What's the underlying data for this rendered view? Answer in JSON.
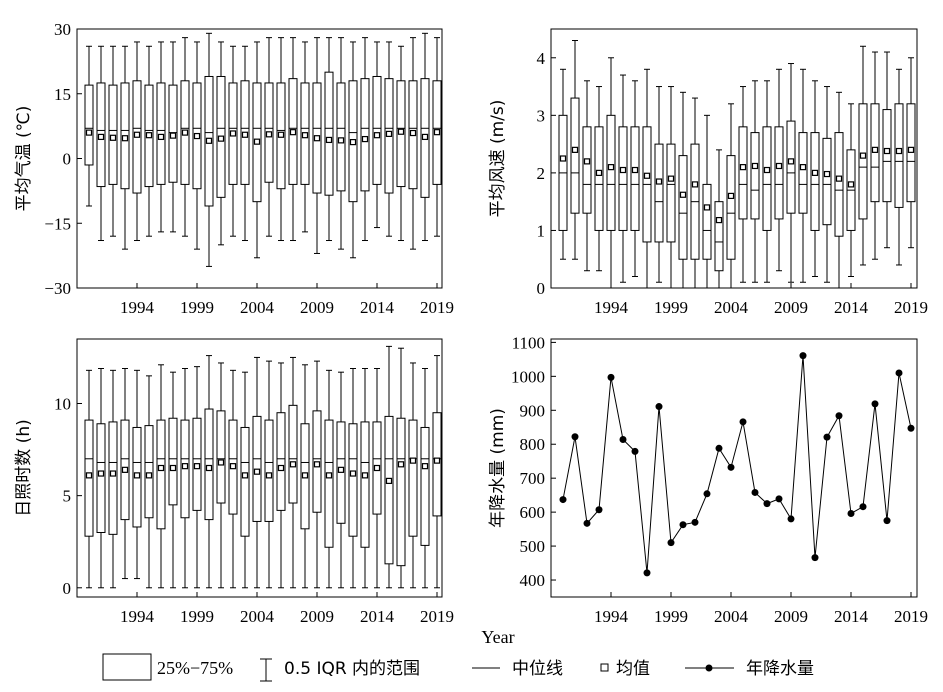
{
  "xlabel": "Year",
  "x_tick_labels": [
    "1994",
    "1999",
    "2004",
    "2009",
    "2014",
    "2019"
  ],
  "chart_data": [
    {
      "type": "box",
      "panel": "temperature",
      "ylabel": "平均气温 (℃)",
      "ylim": [
        -30,
        30
      ],
      "yticks": [
        -30,
        -15,
        0,
        15,
        30
      ],
      "ytick_labels": [
        "−30",
        "−15",
        "0",
        "15",
        "30"
      ],
      "years": [
        1990,
        1991,
        1992,
        1993,
        1994,
        1995,
        1996,
        1997,
        1998,
        1999,
        2000,
        2001,
        2002,
        2003,
        2004,
        2005,
        2006,
        2007,
        2008,
        2009,
        2010,
        2011,
        2012,
        2013,
        2014,
        2015,
        2016,
        2017,
        2018,
        2019
      ],
      "whisker_low": [
        -11,
        -19,
        -18,
        -21,
        -19,
        -18,
        -17,
        -17,
        -18,
        -21,
        -25,
        -20,
        -18,
        -19,
        -23,
        -18,
        -19,
        -19,
        -17,
        -22,
        -19,
        -21,
        -23,
        -19,
        -16,
        -18,
        -19,
        -21,
        -19,
        -18
      ],
      "q1": [
        -1.5,
        -6.5,
        -6,
        -7,
        -8,
        -6.5,
        -6,
        -5.5,
        -6,
        -7,
        -11,
        -9,
        -6,
        -6,
        -10,
        -5.5,
        -7,
        -6,
        -6,
        -8,
        -8.5,
        -7.5,
        -10,
        -7.5,
        -6,
        -8,
        -6.5,
        -7,
        -9,
        -6
      ],
      "median": [
        7,
        6.5,
        6.5,
        6.5,
        7,
        6.5,
        6.5,
        6,
        7,
        7,
        6,
        7,
        7,
        7,
        7,
        7,
        6.5,
        7,
        7,
        7,
        7,
        7,
        6,
        7,
        7,
        7,
        7,
        7,
        7,
        7
      ],
      "mean": [
        6,
        5,
        4.8,
        4.7,
        5.5,
        5.4,
        5,
        5.3,
        6,
        5.2,
        4.1,
        4.6,
        5.8,
        5.5,
        3.9,
        5.6,
        5.5,
        6.1,
        5.4,
        4.7,
        4.3,
        4.2,
        3.8,
        4.5,
        5.4,
        5.7,
        6.2,
        5.9,
        5,
        6.1
      ],
      "q3": [
        17,
        17.5,
        17,
        17.5,
        18,
        17,
        17.5,
        17,
        18,
        17.5,
        19,
        19,
        17.5,
        18,
        17.5,
        17.5,
        17.5,
        18.5,
        17.5,
        17.5,
        20,
        17.5,
        18,
        18.5,
        19,
        18.5,
        18,
        18,
        18.5,
        18
      ],
      "whisker_high": [
        26,
        26,
        26,
        26,
        27,
        26,
        27,
        27,
        28,
        27,
        29,
        27,
        26,
        26,
        27,
        28,
        28,
        28,
        27,
        28,
        28,
        28,
        27,
        28,
        27,
        27,
        26,
        28,
        29,
        28
      ]
    },
    {
      "type": "box",
      "panel": "wind",
      "ylabel": "平均风速 (m/s)",
      "ylim": [
        0,
        4.5
      ],
      "yticks": [
        0,
        1,
        2,
        3,
        4
      ],
      "ytick_labels": [
        "0",
        "1",
        "2",
        "3",
        "4"
      ],
      "years": [
        1990,
        1991,
        1992,
        1993,
        1994,
        1995,
        1996,
        1997,
        1998,
        1999,
        2000,
        2001,
        2002,
        2003,
        2004,
        2005,
        2006,
        2007,
        2008,
        2009,
        2010,
        2011,
        2012,
        2013,
        2014,
        2015,
        2016,
        2017,
        2018,
        2019
      ],
      "whisker_low": [
        0.5,
        0.5,
        0.3,
        0.3,
        0,
        0.1,
        0.2,
        0,
        0.1,
        0,
        0,
        0,
        0,
        0,
        0,
        0.1,
        0.1,
        0.1,
        0.3,
        0.1,
        0.1,
        0.2,
        0.1,
        0,
        0.2,
        0.4,
        0.5,
        0.7,
        0.4,
        0.7
      ],
      "q1": [
        1,
        1.3,
        1.3,
        1,
        1,
        1,
        1,
        0.8,
        0.8,
        0.8,
        0.5,
        0.5,
        0.5,
        0.3,
        0.5,
        1.2,
        1.2,
        1,
        1.2,
        1.3,
        1.3,
        1,
        1.1,
        0.9,
        1,
        1.2,
        1.5,
        1.5,
        1.4,
        1.5
      ],
      "median": [
        2,
        2,
        1.8,
        1.8,
        1.8,
        1.8,
        1.8,
        1.8,
        1.5,
        1.8,
        1.3,
        1.5,
        1,
        0.8,
        1.3,
        1.8,
        1.7,
        1.8,
        1.8,
        2,
        1.8,
        1.8,
        1.8,
        1.7,
        1.7,
        2.1,
        2.1,
        2.2,
        2.2,
        2.2
      ],
      "mean": [
        2.25,
        2.4,
        2.2,
        2,
        2.1,
        2.05,
        2.05,
        1.95,
        1.85,
        1.9,
        1.62,
        1.8,
        1.4,
        1.18,
        1.6,
        2.1,
        2.12,
        2.05,
        2.12,
        2.2,
        2.1,
        2,
        1.98,
        1.9,
        1.8,
        2.3,
        2.4,
        2.38,
        2.38,
        2.4
      ],
      "q3": [
        3,
        3.3,
        2.8,
        2.8,
        3,
        2.8,
        2.8,
        2.8,
        2.5,
        2.5,
        2.3,
        2.5,
        1.8,
        1.5,
        2.3,
        2.8,
        2.7,
        2.8,
        2.8,
        2.9,
        2.7,
        2.7,
        2.6,
        2.7,
        2.4,
        3.2,
        3.2,
        3.1,
        3.2,
        3.2
      ],
      "whisker_high": [
        3.8,
        4.3,
        3.6,
        3.5,
        4,
        3.7,
        3.6,
        3.8,
        3.5,
        3.5,
        3.4,
        3.3,
        3,
        2.4,
        3.2,
        3.5,
        3.6,
        3.6,
        3.8,
        3.9,
        3.8,
        3.6,
        3.5,
        3.4,
        3.2,
        4.2,
        4.1,
        4.1,
        3.8,
        4
      ]
    },
    {
      "type": "box",
      "panel": "sunshine",
      "ylabel": "日照时数 (h)",
      "ylim": [
        -0.5,
        13.5
      ],
      "yticks": [
        0,
        5,
        10
      ],
      "ytick_labels": [
        "0",
        "5",
        "10"
      ],
      "years": [
        1990,
        1991,
        1992,
        1993,
        1994,
        1995,
        1996,
        1997,
        1998,
        1999,
        2000,
        2001,
        2002,
        2003,
        2004,
        2005,
        2006,
        2007,
        2008,
        2009,
        2010,
        2011,
        2012,
        2013,
        2014,
        2015,
        2016,
        2017,
        2018,
        2019
      ],
      "whisker_low": [
        0,
        0,
        0,
        0.5,
        0.5,
        0,
        0,
        0,
        0,
        0,
        0,
        0,
        0,
        0,
        0,
        0,
        0,
        0,
        0,
        0,
        0,
        0,
        0,
        0,
        0,
        0,
        0,
        0,
        0,
        0
      ],
      "q1": [
        2.8,
        3,
        2.9,
        3.7,
        3.3,
        3.8,
        3.2,
        4.5,
        3.8,
        4.2,
        3.7,
        4.6,
        4,
        2.8,
        3.6,
        3.6,
        4.2,
        4.6,
        3.2,
        4.1,
        2.2,
        3.5,
        2.8,
        2.2,
        4,
        1.3,
        1.2,
        2.8,
        2.3,
        3.9
      ],
      "median": [
        7,
        6.8,
        6.8,
        7,
        6.8,
        6.8,
        7,
        7,
        7,
        7,
        7,
        7,
        7,
        6.8,
        7,
        6.8,
        7,
        7,
        6.8,
        7,
        6.8,
        7,
        7,
        6.8,
        7,
        7,
        7,
        7,
        7,
        7
      ],
      "mean": [
        6.1,
        6.2,
        6.2,
        6.4,
        6.1,
        6.1,
        6.5,
        6.5,
        6.6,
        6.6,
        6.5,
        6.8,
        6.6,
        6.1,
        6.3,
        6.1,
        6.5,
        6.7,
        6.1,
        6.7,
        6.1,
        6.4,
        6.2,
        6.1,
        6.5,
        5.8,
        6.7,
        6.9,
        6.6,
        6.9
      ],
      "q3": [
        9.1,
        8.9,
        9,
        9.1,
        8.7,
        8.8,
        9.1,
        9.2,
        9.1,
        9.2,
        9.7,
        9.6,
        9.1,
        8.7,
        9.3,
        9.1,
        9.5,
        9.9,
        8.9,
        9.6,
        9.1,
        9,
        8.9,
        9,
        9,
        9.3,
        9.2,
        9.1,
        8.7,
        9.5
      ],
      "whisker_high": [
        11.8,
        11.9,
        11.8,
        11.9,
        11.8,
        11.5,
        12.1,
        11.7,
        11.9,
        12,
        12.6,
        12.2,
        11.8,
        11.7,
        12.5,
        12.3,
        12.2,
        12.5,
        12.1,
        12.3,
        11.8,
        11.7,
        11.9,
        11.9,
        11.9,
        13.1,
        13,
        12.2,
        11.9,
        12.6
      ]
    },
    {
      "type": "line",
      "panel": "precipitation",
      "ylabel": "年降水量 (mm)",
      "ylim": [
        350,
        1110
      ],
      "yticks": [
        400,
        500,
        600,
        700,
        800,
        900,
        1000,
        1100
      ],
      "ytick_labels": [
        "400",
        "500",
        "600",
        "700",
        "800",
        "900",
        "1000",
        "1100"
      ],
      "years": [
        1990,
        1991,
        1992,
        1993,
        1994,
        1995,
        1996,
        1997,
        1998,
        1999,
        2000,
        2001,
        2002,
        2003,
        2004,
        2005,
        2006,
        2007,
        2008,
        2009,
        2010,
        2011,
        2012,
        2013,
        2014,
        2015,
        2016,
        2017,
        2018,
        2019
      ],
      "values": [
        637,
        822,
        567,
        607,
        997,
        814,
        779,
        421,
        911,
        510,
        563,
        570,
        654,
        788,
        732,
        866,
        658,
        625,
        639,
        580,
        1061,
        466,
        821,
        884,
        596,
        616,
        919,
        575,
        1010,
        847
      ]
    }
  ],
  "legend": {
    "box_label": "25%−75%",
    "whisker_label": "0.5 IQR 内的范围",
    "median_label": "中位线",
    "mean_label": "均值",
    "line_label": "年降水量"
  }
}
